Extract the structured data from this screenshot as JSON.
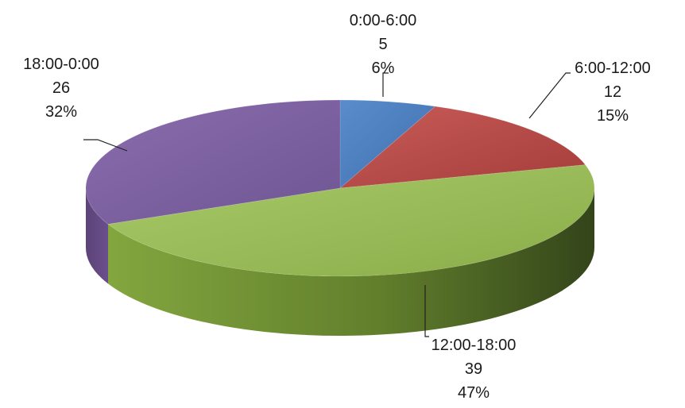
{
  "chart_data": {
    "type": "pie",
    "title": "",
    "slices": [
      {
        "name": "0:00-6:00",
        "value": 5,
        "percent": "6%",
        "color": "#4f81bd"
      },
      {
        "name": "6:00-12:00",
        "value": 12,
        "percent": "15%",
        "color": "#c0504d"
      },
      {
        "name": "12:00-18:00",
        "value": 39,
        "percent": "47%",
        "color": "#9bbb59"
      },
      {
        "name": "18:00-0:00",
        "value": 26,
        "percent": "32%",
        "color": "#8064a2"
      }
    ],
    "legend": "none",
    "style": "3d-exploded-none"
  }
}
